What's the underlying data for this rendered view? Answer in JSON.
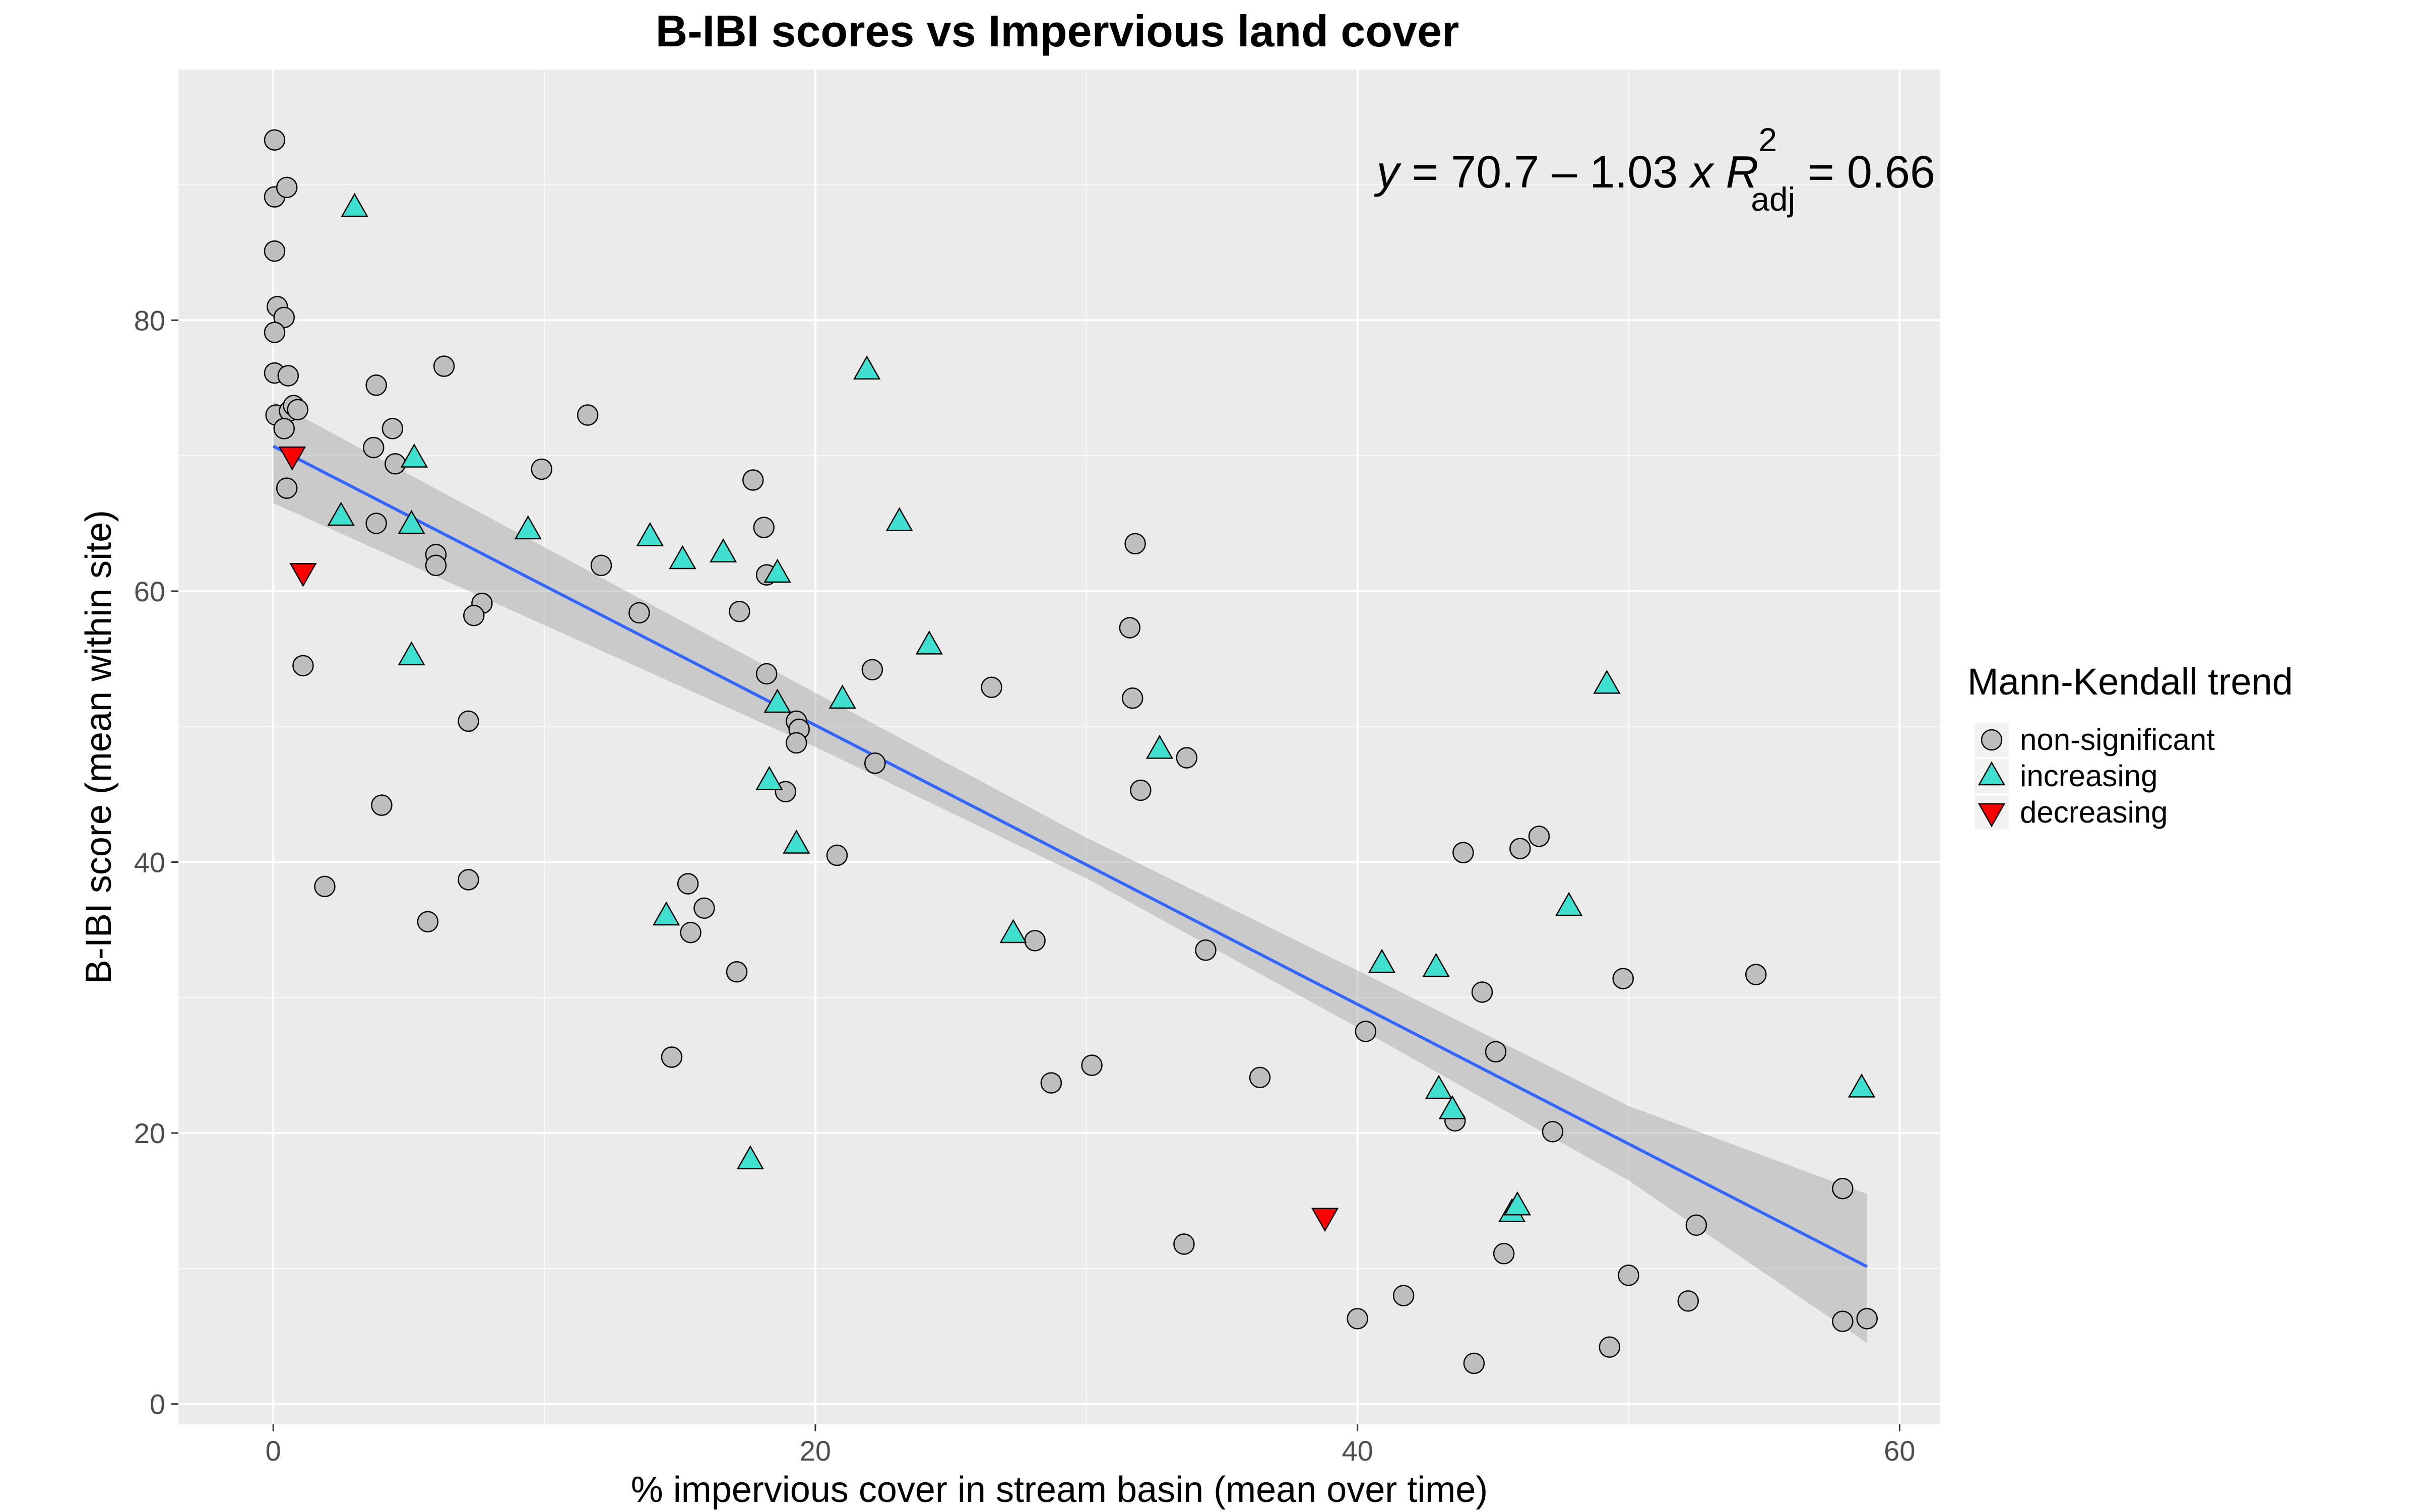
{
  "chart_data": {
    "type": "scatter",
    "title": "B-IBI scores vs Impervious land cover",
    "xlabel": "% impervious cover in stream basin (mean over time)",
    "ylabel": "B-IBI score (mean within site)",
    "xlim": [
      -3.5,
      61.5
    ],
    "ylim": [
      -1.5,
      98.5
    ],
    "x_ticks": [
      0,
      20,
      40,
      60
    ],
    "x_tick_labels": [
      "0",
      "20",
      "40",
      "60"
    ],
    "y_ticks": [
      0,
      20,
      40,
      60,
      80
    ],
    "y_tick_labels": [
      "0",
      "20",
      "40",
      "60",
      "80"
    ],
    "grid": true,
    "background": "#ebebeb",
    "annotation": {
      "y_var": "y",
      "eq_middle": " = 70.7 – 1.03 ",
      "x_var": "x",
      "r_letter": "R",
      "r_sup": "2",
      "r_sub": "adj",
      "eq_end": " = 0.66"
    },
    "legend": {
      "title": "Mann-Kendall trend",
      "position": "right",
      "entries": [
        {
          "key": "non-significant",
          "label": "non-significant",
          "shape": "circle",
          "color": "#bebebe"
        },
        {
          "key": "increasing",
          "label": "increasing",
          "shape": "triangle-up",
          "color": "#40e0d0"
        },
        {
          "key": "decreasing",
          "label": "decreasing",
          "shape": "triangle-down",
          "color": "#ff0000"
        }
      ]
    },
    "regression": {
      "intercept": 70.7,
      "slope": -1.03,
      "x_range": [
        0,
        58.8
      ],
      "line_color": "#3366ff",
      "band_color": "#999999",
      "band": [
        {
          "x": 0,
          "lo": 66.5,
          "hi": 74.0
        },
        {
          "x": 20,
          "lo": 48.5,
          "hi": 52.5
        },
        {
          "x": 30,
          "lo": 38.8,
          "hi": 41.8
        },
        {
          "x": 40,
          "lo": 27.8,
          "hi": 32.0
        },
        {
          "x": 50,
          "lo": 16.5,
          "hi": 22.0
        },
        {
          "x": 58.8,
          "lo": 4.5,
          "hi": 15.5
        }
      ]
    },
    "series": [
      {
        "name": "non-significant",
        "points": [
          [
            0.05,
            93.3
          ],
          [
            0.05,
            89.1
          ],
          [
            0.5,
            89.8
          ],
          [
            0.05,
            85.1
          ],
          [
            0.15,
            81.0
          ],
          [
            0.4,
            80.2
          ],
          [
            0.05,
            79.1
          ],
          [
            0.05,
            76.1
          ],
          [
            0.55,
            75.9
          ],
          [
            0.1,
            73.0
          ],
          [
            0.6,
            73.3
          ],
          [
            0.75,
            73.7
          ],
          [
            0.9,
            73.4
          ],
          [
            0.4,
            72.0
          ],
          [
            0.5,
            67.6
          ],
          [
            1.1,
            54.5
          ],
          [
            1.9,
            38.2
          ],
          [
            3.8,
            75.2
          ],
          [
            3.7,
            70.6
          ],
          [
            4.4,
            72.0
          ],
          [
            4.5,
            69.4
          ],
          [
            3.8,
            65.0
          ],
          [
            4.0,
            44.2
          ],
          [
            6.3,
            76.6
          ],
          [
            6.0,
            62.7
          ],
          [
            6.0,
            61.9
          ],
          [
            7.7,
            59.1
          ],
          [
            7.4,
            58.2
          ],
          [
            7.2,
            50.4
          ],
          [
            7.2,
            38.7
          ],
          [
            5.7,
            35.6
          ],
          [
            9.9,
            69.0
          ],
          [
            11.6,
            73.0
          ],
          [
            12.1,
            61.9
          ],
          [
            13.5,
            58.4
          ],
          [
            15.3,
            38.4
          ],
          [
            15.4,
            34.8
          ],
          [
            15.9,
            36.6
          ],
          [
            14.7,
            25.6
          ],
          [
            17.1,
            31.9
          ],
          [
            17.2,
            58.5
          ],
          [
            17.7,
            68.2
          ],
          [
            18.1,
            64.7
          ],
          [
            18.2,
            61.2
          ],
          [
            18.2,
            53.9
          ],
          [
            18.9,
            45.2
          ],
          [
            19.3,
            50.4
          ],
          [
            19.4,
            49.8
          ],
          [
            19.3,
            48.8
          ],
          [
            20.8,
            40.5
          ],
          [
            22.1,
            54.2
          ],
          [
            22.2,
            47.3
          ],
          [
            26.5,
            52.9
          ],
          [
            28.1,
            34.2
          ],
          [
            28.7,
            23.7
          ],
          [
            30.2,
            25.0
          ],
          [
            31.8,
            63.5
          ],
          [
            31.6,
            57.3
          ],
          [
            31.7,
            52.1
          ],
          [
            32.0,
            45.3
          ],
          [
            33.7,
            47.7
          ],
          [
            34.4,
            33.5
          ],
          [
            33.6,
            11.8
          ],
          [
            36.4,
            24.1
          ],
          [
            40.0,
            6.3
          ],
          [
            40.3,
            27.5
          ],
          [
            41.7,
            8.0
          ],
          [
            43.9,
            40.7
          ],
          [
            44.6,
            30.4
          ],
          [
            45.1,
            26.0
          ],
          [
            43.6,
            20.9
          ],
          [
            45.4,
            11.1
          ],
          [
            44.3,
            3.0
          ],
          [
            46.0,
            41.0
          ],
          [
            46.7,
            41.9
          ],
          [
            47.2,
            20.1
          ],
          [
            49.8,
            31.4
          ],
          [
            49.3,
            4.2
          ],
          [
            50.0,
            9.5
          ],
          [
            52.2,
            7.6
          ],
          [
            52.5,
            13.2
          ],
          [
            54.7,
            31.7
          ],
          [
            57.9,
            15.9
          ],
          [
            57.9,
            6.1
          ],
          [
            58.8,
            6.3
          ]
        ]
      },
      {
        "name": "increasing",
        "points": [
          [
            3.0,
            88.3
          ],
          [
            5.2,
            69.8
          ],
          [
            2.5,
            65.5
          ],
          [
            5.1,
            64.9
          ],
          [
            5.1,
            55.2
          ],
          [
            9.4,
            64.5
          ],
          [
            13.9,
            64.0
          ],
          [
            15.1,
            62.3
          ],
          [
            16.6,
            62.8
          ],
          [
            18.6,
            61.3
          ],
          [
            21.9,
            76.3
          ],
          [
            23.1,
            65.1
          ],
          [
            24.2,
            56.0
          ],
          [
            18.6,
            51.7
          ],
          [
            21.0,
            52.0
          ],
          [
            18.3,
            46.0
          ],
          [
            19.3,
            41.3
          ],
          [
            14.5,
            36.0
          ],
          [
            17.6,
            18.0
          ],
          [
            27.3,
            34.7
          ],
          [
            32.7,
            48.3
          ],
          [
            40.9,
            32.5
          ],
          [
            42.9,
            32.2
          ],
          [
            43.0,
            23.2
          ],
          [
            43.5,
            21.7
          ],
          [
            47.8,
            36.7
          ],
          [
            49.2,
            53.1
          ],
          [
            45.7,
            14.1
          ],
          [
            45.9,
            14.6
          ],
          [
            58.6,
            23.3
          ]
        ]
      },
      {
        "name": "decreasing",
        "points": [
          [
            0.7,
            70.0
          ],
          [
            1.1,
            61.4
          ],
          [
            38.8,
            13.8
          ]
        ]
      }
    ]
  }
}
